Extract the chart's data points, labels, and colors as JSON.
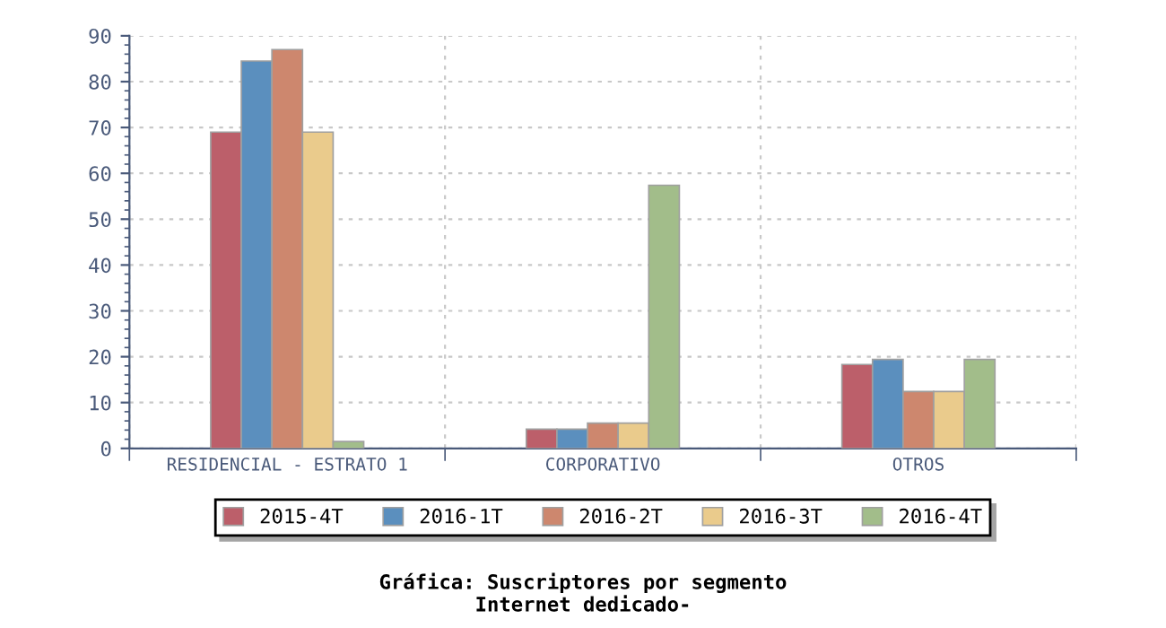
{
  "chart_data": {
    "type": "bar",
    "title": "Gráfica: Suscriptores por segmento\nInternet dedicado-",
    "categories": [
      "RESIDENCIAL - ESTRATO 1",
      "CORPORATIVO",
      "OTROS"
    ],
    "series": [
      {
        "name": "2015-4T",
        "color": "#bc5f6a",
        "values": [
          69,
          4.2,
          18.3
        ]
      },
      {
        "name": "2016-1T",
        "color": "#5b8fbe",
        "values": [
          84.5,
          4.2,
          19.4
        ]
      },
      {
        "name": "2016-2T",
        "color": "#cd876e",
        "values": [
          87,
          5.5,
          12.4
        ]
      },
      {
        "name": "2016-3T",
        "color": "#eacb8c",
        "values": [
          69,
          5.5,
          12.4
        ]
      },
      {
        "name": "2016-4T",
        "color": "#a2bd8a",
        "values": [
          1.5,
          57.4,
          19.4
        ]
      }
    ],
    "ylim": [
      0,
      90
    ],
    "yticks": [
      0,
      10,
      20,
      30,
      40,
      50,
      60,
      70,
      80,
      90
    ],
    "grid": true,
    "legend": "bottom"
  }
}
